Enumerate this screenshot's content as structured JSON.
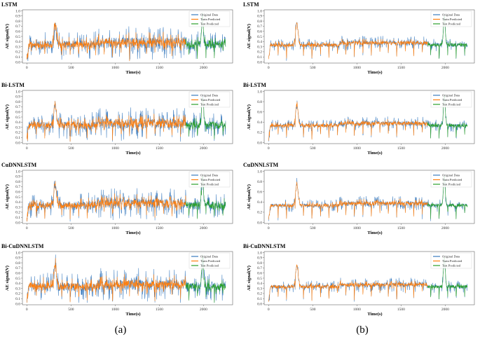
{
  "figure": {
    "captions": [
      "(a)",
      "(b)"
    ]
  },
  "colors": {
    "original": "#3a7bbf",
    "train": "#ff7f0e",
    "test": "#2ca02c",
    "axis": "#666666"
  },
  "chart_data": [
    {
      "type": "line",
      "col": 0,
      "row": 0,
      "title": "LSTM",
      "xlabel": "Time(s)",
      "ylabel": "AE signal(V)",
      "xlim": [
        -50,
        2330
      ],
      "ylim": [
        -0.02,
        1.02
      ],
      "xticks": [
        0,
        500,
        1000,
        1500,
        2000
      ],
      "yticks": [
        0.0,
        0.1,
        0.2,
        0.3,
        0.4,
        0.5,
        0.6,
        0.7,
        0.8,
        0.9,
        1.0
      ],
      "train_end": 1800,
      "noise": 1.25,
      "seed": 11,
      "series": [
        {
          "name": "Original Data"
        },
        {
          "name": "Train Predicted"
        },
        {
          "name": "Test Predicted"
        }
      ]
    },
    {
      "type": "line",
      "col": 1,
      "row": 0,
      "title": "LSTM",
      "xlabel": "Time(s)",
      "ylabel": "AE signal(V)",
      "xlim": [
        -50,
        2330
      ],
      "ylim": [
        -0.02,
        1.02
      ],
      "xticks": [
        0,
        500,
        1000,
        1500,
        2000
      ],
      "yticks": [
        0.0,
        0.1,
        0.2,
        0.3,
        0.4,
        0.5,
        0.6,
        0.7,
        0.8,
        0.9,
        1.0
      ],
      "train_end": 1800,
      "noise": 0.55,
      "seed": 12,
      "series": [
        {
          "name": "Original Data"
        },
        {
          "name": "Train Predicted"
        },
        {
          "name": "Test Predicted"
        }
      ]
    },
    {
      "type": "line",
      "col": 0,
      "row": 1,
      "title": "Bi-LSTM",
      "xlabel": "Time(s)",
      "ylabel": "AE signal(V)",
      "xlim": [
        -50,
        2330
      ],
      "ylim": [
        -0.02,
        1.02
      ],
      "xticks": [
        0,
        500,
        1000,
        1500,
        2000
      ],
      "yticks": [
        0.0,
        0.1,
        0.2,
        0.3,
        0.4,
        0.5,
        0.6,
        0.7,
        0.8,
        0.9,
        1.0
      ],
      "train_end": 1800,
      "noise": 1.2,
      "seed": 21,
      "series": [
        {
          "name": "Original Data"
        },
        {
          "name": "Train Predicted"
        },
        {
          "name": "Test Predicted"
        }
      ]
    },
    {
      "type": "line",
      "col": 1,
      "row": 1,
      "title": "Bi-LSTM",
      "xlabel": "Time(s)",
      "ylabel": "AE signal(V)",
      "xlim": [
        -50,
        2330
      ],
      "ylim": [
        -0.02,
        1.02
      ],
      "xticks": [
        0,
        500,
        1000,
        1500,
        2000
      ],
      "yticks": [
        0.0,
        0.2,
        0.4,
        0.6,
        0.8,
        1.0
      ],
      "train_end": 1800,
      "noise": 0.55,
      "seed": 22,
      "series": [
        {
          "name": "Original Data"
        },
        {
          "name": "Train Predicted"
        },
        {
          "name": "Test Predicted"
        }
      ]
    },
    {
      "type": "line",
      "col": 0,
      "row": 2,
      "title": "CuDNNLSTM",
      "xlabel": "Time(s)",
      "ylabel": "AE signal(V)",
      "xlim": [
        -50,
        2330
      ],
      "ylim": [
        -0.02,
        1.02
      ],
      "xticks": [
        0,
        500,
        1000,
        1500,
        2000
      ],
      "yticks": [
        0.0,
        0.1,
        0.2,
        0.3,
        0.4,
        0.5,
        0.6,
        0.7,
        0.8,
        0.9,
        1.0
      ],
      "train_end": 1800,
      "noise": 1.15,
      "seed": 31,
      "series": [
        {
          "name": "Original Data"
        },
        {
          "name": "Train Predicted"
        },
        {
          "name": "Test Predicted"
        }
      ]
    },
    {
      "type": "line",
      "col": 1,
      "row": 2,
      "title": "CuDNNLSTM",
      "xlabel": "Time(s)",
      "ylabel": "AE signal(V)",
      "xlim": [
        -50,
        2330
      ],
      "ylim": [
        -0.02,
        1.02
      ],
      "xticks": [
        0,
        500,
        1000,
        1500,
        2000
      ],
      "yticks": [
        0.0,
        0.2,
        0.4,
        0.6,
        0.8,
        1.0
      ],
      "train_end": 1800,
      "noise": 0.55,
      "seed": 32,
      "series": [
        {
          "name": "Original Data"
        },
        {
          "name": "Train Predicted"
        },
        {
          "name": "Test Predicted"
        }
      ]
    },
    {
      "type": "line",
      "col": 0,
      "row": 3,
      "title": "Bi-CuDNNLSTM",
      "xlabel": "Time(s)",
      "ylabel": "AE signal(V)",
      "xlim": [
        -50,
        2330
      ],
      "ylim": [
        -0.02,
        1.02
      ],
      "xticks": [
        0,
        500,
        1000,
        1500,
        2000
      ],
      "yticks": [
        0.0,
        0.1,
        0.2,
        0.3,
        0.4,
        0.5,
        0.6,
        0.7,
        0.8,
        0.9,
        1.0
      ],
      "train_end": 1800,
      "noise": 1.25,
      "seed": 41,
      "series": [
        {
          "name": "Original Data"
        },
        {
          "name": "Train Predicted"
        },
        {
          "name": "Test Predicted"
        }
      ]
    },
    {
      "type": "line",
      "col": 1,
      "row": 3,
      "title": "Bi-CuDNNLSTM",
      "xlabel": "Time(s)",
      "ylabel": "AE signal(V)",
      "xlim": [
        -50,
        2330
      ],
      "ylim": [
        -0.02,
        1.02
      ],
      "xticks": [
        0,
        500,
        1000,
        1500,
        2000
      ],
      "yticks": [
        0.0,
        0.1,
        0.2,
        0.3,
        0.4,
        0.5,
        0.6,
        0.7,
        0.8,
        0.9,
        1.0
      ],
      "train_end": 1800,
      "noise": 0.55,
      "seed": 42,
      "series": [
        {
          "name": "Original Data"
        },
        {
          "name": "Train Predicted"
        },
        {
          "name": "Test Predicted"
        }
      ]
    }
  ]
}
